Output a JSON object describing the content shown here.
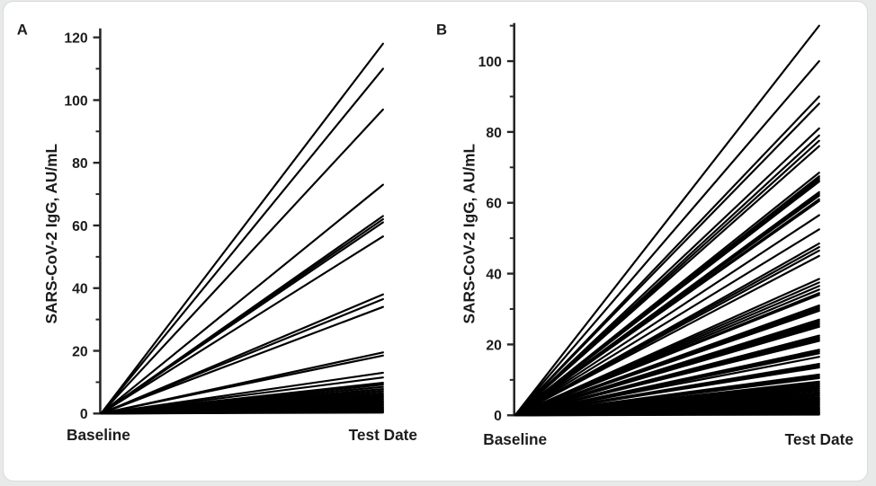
{
  "page": {
    "background_color": "#e8e9e9",
    "card_background": "#ffffff",
    "card_border_color": "#dadbdc"
  },
  "chart_data": [
    {
      "type": "line",
      "panel": "A",
      "title": "",
      "ylabel": "SARS-CoV-2 IgG, AU/mL",
      "xlabel_categories": [
        "Baseline",
        "Test Date"
      ],
      "ylim": [
        0,
        123
      ],
      "ytick_labels": [
        0,
        20,
        40,
        60,
        80,
        100,
        120
      ],
      "ytick_minor_step": 10,
      "grid": false,
      "legend": "none",
      "line_color": "#000000",
      "axis_color": "#262626",
      "description": "Individual participant SARS-CoV-2 IgG trajectories; every line starts at 0 AU/mL at Baseline and rises linearly to its value at Test Date.",
      "series_start_value": 0,
      "series_end_values": [
        118,
        110,
        97,
        73,
        63,
        62,
        61,
        56.5,
        38,
        36.5,
        34,
        19.5,
        18.5,
        13,
        11.5,
        9.8,
        9.2,
        8.5,
        7.8,
        7.2,
        6.6,
        6,
        5.5,
        5,
        4.5,
        4,
        3.6,
        3.2,
        2.8,
        2.4,
        2,
        1.7,
        1.4,
        1.1,
        0.8,
        0.5,
        0.3
      ]
    },
    {
      "type": "line",
      "panel": "B",
      "title": "",
      "ylabel": "SARS-CoV-2 IgG, AU/mL",
      "xlabel_categories": [
        "Baseline",
        "Test Date"
      ],
      "ylim": [
        0,
        110
      ],
      "ytick_labels": [
        0,
        20,
        40,
        60,
        80,
        100
      ],
      "ytick_minor_step": 10,
      "grid": false,
      "legend": "none",
      "line_color": "#000000",
      "axis_color": "#262626",
      "description": "Individual participant SARS-CoV-2 IgG trajectories; every line starts at 0 AU/mL at Baseline and rises linearly to its value at Test Date.",
      "series_start_value": 0,
      "series_end_values": [
        110,
        100,
        90,
        88,
        81,
        79,
        77.5,
        76,
        68.5,
        67.5,
        67,
        66.5,
        66,
        63,
        62.5,
        62,
        61,
        60.5,
        56.5,
        52.5,
        48.5,
        47.5,
        46.5,
        45,
        38.5,
        37.5,
        36.5,
        35.5,
        34.5,
        34,
        31,
        30.5,
        30,
        29.5,
        27,
        26.5,
        26,
        25.5,
        25,
        22.5,
        22,
        21.5,
        21,
        18.5,
        18,
        17.5,
        16.5,
        14.5,
        14,
        13.5,
        11.5,
        11,
        10.5,
        9.5,
        9,
        8.5,
        8,
        7.5,
        7,
        6.5,
        6,
        5.5,
        5,
        4.6,
        4.2,
        3.8,
        3.4,
        3,
        2.6,
        2.2,
        1.9,
        1.6,
        1.3,
        1,
        0.8,
        0.6,
        0.4,
        0.2
      ]
    }
  ]
}
